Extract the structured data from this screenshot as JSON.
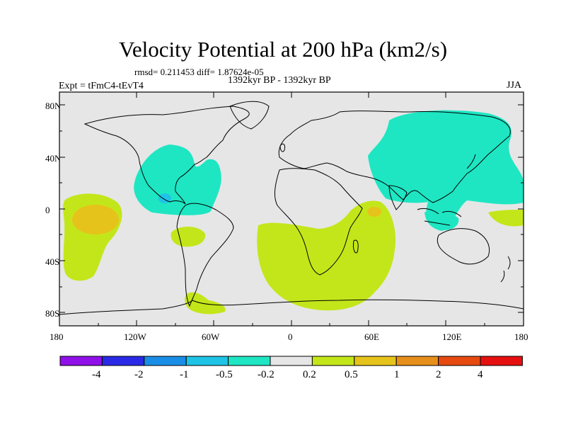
{
  "title": "Velocity Potential at 200 hPa (km2/s)",
  "stats": "rmsd= 0.211453  diff= 1.87624e-05",
  "period": "1392kyr BP - 1392kyr BP",
  "experiment": "Expt = tFmC4-tEvT4",
  "season": "JJA",
  "map": {
    "lon_range": [
      -180,
      180
    ],
    "lat_range": [
      -90,
      90
    ],
    "lat_labels": [
      "80N",
      "40N",
      "0",
      "40S",
      "80S"
    ],
    "lon_labels": [
      "180",
      "120W",
      "60W",
      "0",
      "60E",
      "120E",
      "180"
    ],
    "background_color": "#e6e6e6",
    "coastline_color": "#000000"
  },
  "colorbar": {
    "colors": [
      "#8f10e8",
      "#2a2ae6",
      "#1a8ee6",
      "#1ec3e6",
      "#1ee6c3",
      "#e6e6e6",
      "#c3e61a",
      "#e6c31a",
      "#e68f1a",
      "#e64a10",
      "#e61010"
    ],
    "labels": [
      "-4",
      "-2",
      "-1",
      "-0.5",
      "-0.2",
      "0.2",
      "0.5",
      "1",
      "2",
      "4"
    ]
  }
}
